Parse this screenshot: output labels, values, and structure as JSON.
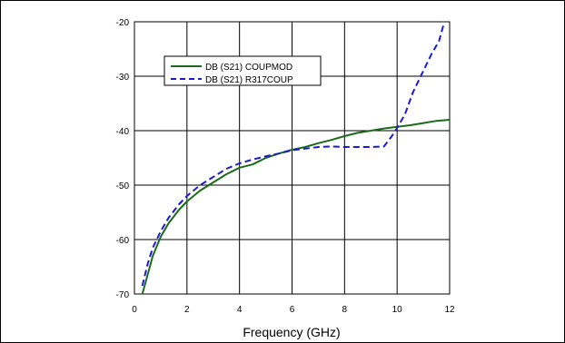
{
  "chart_data": {
    "type": "line",
    "title": "",
    "xlabel": "Frequency (GHz)",
    "ylabel": "",
    "xlim": [
      0,
      12
    ],
    "ylim": [
      -70,
      -20
    ],
    "xticks": [
      0,
      2,
      4,
      6,
      8,
      10,
      12
    ],
    "yticks": [
      -20,
      -30,
      -40,
      -50,
      -60,
      -70
    ],
    "grid": true,
    "legend_position": "top-left",
    "series": [
      {
        "name": "DB (S21) COUPMOD",
        "color": "#1a6b1a",
        "style": "solid",
        "x": [
          0.3,
          0.5,
          0.7,
          1.0,
          1.3,
          1.7,
          2.0,
          2.5,
          3.0,
          3.5,
          4.0,
          4.5,
          5.0,
          5.5,
          6.0,
          6.5,
          7.0,
          7.5,
          8.0,
          8.5,
          9.0,
          9.5,
          10.0,
          10.5,
          11.0,
          11.5,
          12.0
        ],
        "y": [
          -70.0,
          -66.5,
          -63.0,
          -59.5,
          -57.0,
          -54.5,
          -53.0,
          -51.0,
          -49.5,
          -48.0,
          -46.8,
          -46.2,
          -45.0,
          -44.2,
          -43.5,
          -43.0,
          -42.3,
          -41.7,
          -41.0,
          -40.4,
          -40.0,
          -39.6,
          -39.3,
          -39.0,
          -38.6,
          -38.2,
          -38.0
        ]
      },
      {
        "name": "DB (S21) R317COUP",
        "color": "#1a1ad6",
        "style": "dashed",
        "x": [
          0.3,
          0.5,
          0.7,
          1.0,
          1.3,
          1.7,
          2.0,
          2.5,
          3.0,
          3.5,
          4.0,
          4.5,
          5.0,
          5.5,
          6.0,
          6.5,
          7.0,
          7.5,
          8.0,
          8.5,
          9.0,
          9.5,
          9.8,
          10.0,
          10.3,
          10.6,
          11.0,
          11.3,
          11.6,
          11.8
        ],
        "y": [
          -68.5,
          -64.5,
          -61.5,
          -58.5,
          -56.0,
          -53.5,
          -52.0,
          -50.0,
          -48.5,
          -47.0,
          -46.0,
          -45.3,
          -44.7,
          -44.2,
          -43.6,
          -43.3,
          -43.0,
          -42.9,
          -43.0,
          -43.0,
          -43.0,
          -42.9,
          -41.0,
          -39.5,
          -37.0,
          -33.0,
          -29.0,
          -26.0,
          -23.5,
          -20.0
        ]
      }
    ]
  }
}
